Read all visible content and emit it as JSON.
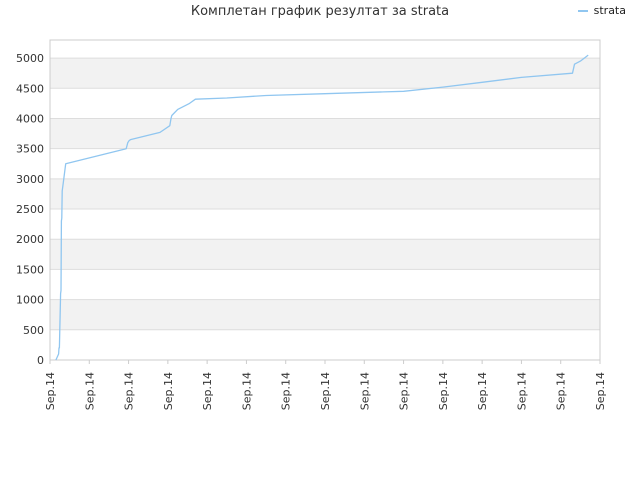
{
  "chart_data": {
    "type": "line",
    "title": "Комплетан график резултат за strata",
    "xlabel": "",
    "ylabel": "",
    "ylim": [
      0,
      5300
    ],
    "yticks": [
      0,
      500,
      1000,
      1500,
      2000,
      2500,
      3000,
      3500,
      4000,
      4500,
      5000
    ],
    "xtick_labels": [
      "Sep.14",
      "Sep.14",
      "Sep.14",
      "Sep.14",
      "Sep.14",
      "Sep.14",
      "Sep.14",
      "Sep.14",
      "Sep.14",
      "Sep.14",
      "Sep.14",
      "Sep.14",
      "Sep.14",
      "Sep.14",
      "Sep.14"
    ],
    "xlim": [
      0,
      14
    ],
    "grid": true,
    "legend_position": "top-right",
    "colors": {
      "line": "#90c6f0",
      "band": "#f2f2f2",
      "grid": "#dddddd",
      "axis": "#cccccc"
    },
    "series": [
      {
        "name": "strata",
        "x": [
          0.15,
          0.22,
          0.23,
          0.24,
          0.27,
          0.28,
          0.29,
          0.3,
          0.31,
          0.33,
          0.4,
          1.94,
          1.98,
          2.01,
          2.05,
          2.8,
          3.05,
          3.08,
          3.1,
          3.25,
          3.55,
          3.7,
          4.5,
          5.5,
          7.0,
          8.5,
          9.0,
          10.0,
          11.0,
          12.0,
          13.3,
          13.35,
          13.5,
          13.7
        ],
        "values": [
          0,
          100,
          200,
          200,
          1100,
          1150,
          2300,
          2350,
          2800,
          2900,
          3250,
          3500,
          3600,
          3630,
          3650,
          3770,
          3880,
          4000,
          4050,
          4150,
          4250,
          4320,
          4340,
          4380,
          4410,
          4440,
          4450,
          4520,
          4600,
          4680,
          4750,
          4900,
          4950,
          5050
        ]
      }
    ]
  }
}
